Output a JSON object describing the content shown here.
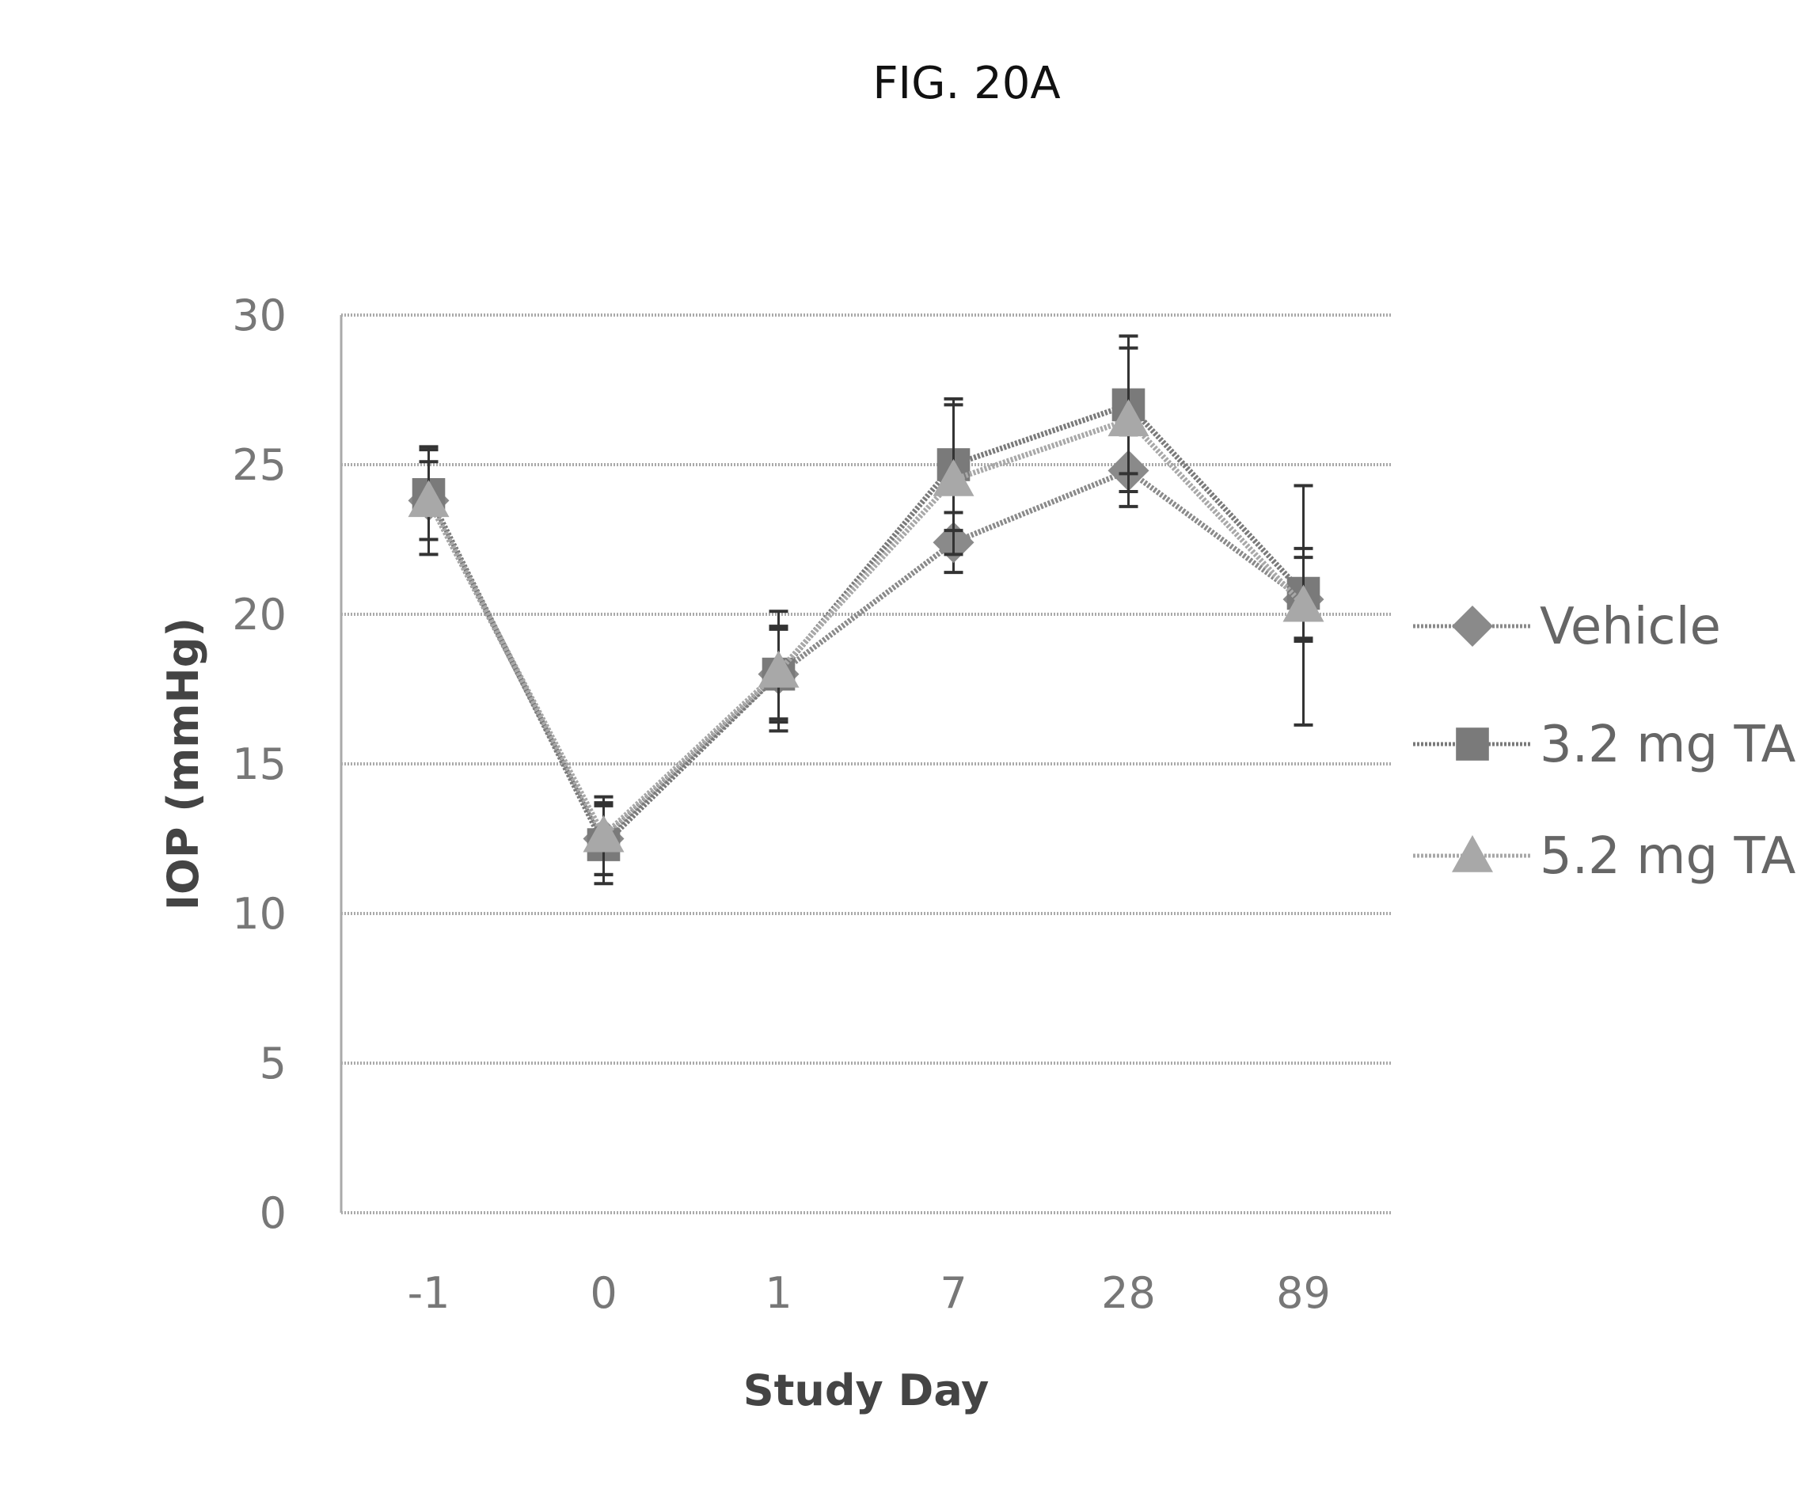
{
  "chart_data": {
    "type": "line",
    "title": "FIG. 20A",
    "xlabel": "Study Day",
    "ylabel": "IOP (mmHg)",
    "categories": [
      "-1",
      "0",
      "1",
      "7",
      "28",
      "89"
    ],
    "ylim": [
      0,
      30
    ],
    "yticks": [
      "0",
      "5",
      "10",
      "15",
      "20",
      "25",
      "30"
    ],
    "grid": true,
    "legend_position": "right",
    "series": [
      {
        "name": "Vehicle",
        "marker": "diamond",
        "color": "#8a8a8a",
        "values": [
          23.8,
          12.5,
          18.0,
          22.4,
          24.8,
          20.5
        ],
        "errors": [
          1.3,
          1.2,
          1.5,
          1.0,
          1.2,
          1.4
        ]
      },
      {
        "name": "3.2 mg TA",
        "marker": "square",
        "color": "#7a7a7a",
        "values": [
          24.0,
          12.3,
          18.0,
          25.0,
          27.0,
          20.7
        ],
        "errors": [
          1.5,
          1.3,
          1.6,
          2.2,
          2.3,
          1.5
        ]
      },
      {
        "name": "5.2 mg TA",
        "marker": "triangle",
        "color": "#a8a8a8",
        "values": [
          23.8,
          12.6,
          18.1,
          24.5,
          26.5,
          20.3
        ],
        "errors": [
          1.8,
          1.3,
          2.0,
          2.5,
          2.4,
          4.0
        ]
      }
    ]
  }
}
